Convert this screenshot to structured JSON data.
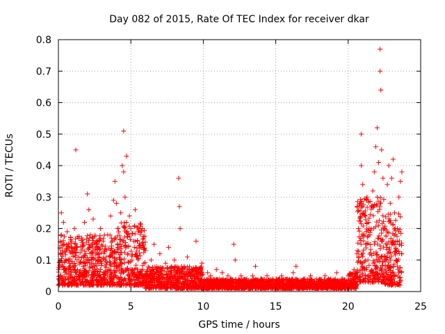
{
  "chart_data": {
    "type": "scatter",
    "title": "Day 082 of 2015, Rate Of TEC Index for receiver dkar",
    "xlabel": "GPS time / hours",
    "ylabel": "ROTI / TECUs",
    "xlim": [
      0,
      25
    ],
    "ylim": [
      0,
      0.8
    ],
    "x_ticks": [
      0,
      5,
      10,
      15,
      20,
      25
    ],
    "y_ticks": [
      0,
      0.1,
      0.2,
      0.3,
      0.4,
      0.5,
      0.6,
      0.7,
      0.8
    ],
    "x_tick_labels": [
      "0",
      "5",
      "10",
      "15",
      "20",
      "25"
    ],
    "y_tick_labels": [
      "0",
      "0.1",
      "0.2",
      "0.3",
      "0.4",
      "0.5",
      "0.6",
      "0.7",
      "0.8"
    ],
    "grid": true,
    "marker": "+",
    "color": "#ff0000",
    "points": [
      [
        0.0,
        0.02
      ],
      [
        0.1,
        0.05
      ],
      [
        0.15,
        0.12
      ],
      [
        0.2,
        0.25
      ],
      [
        0.2,
        0.18
      ],
      [
        0.3,
        0.08
      ],
      [
        0.35,
        0.22
      ],
      [
        0.4,
        0.15
      ],
      [
        0.5,
        0.04
      ],
      [
        0.5,
        0.1
      ],
      [
        0.6,
        0.19
      ],
      [
        0.7,
        0.07
      ],
      [
        0.75,
        0.13
      ],
      [
        0.8,
        0.03
      ],
      [
        0.9,
        0.16
      ],
      [
        1.0,
        0.09
      ],
      [
        1.1,
        0.2
      ],
      [
        1.2,
        0.45
      ],
      [
        1.2,
        0.06
      ],
      [
        1.3,
        0.14
      ],
      [
        1.4,
        0.11
      ],
      [
        1.5,
        0.05
      ],
      [
        1.6,
        0.17
      ],
      [
        1.7,
        0.08
      ],
      [
        1.8,
        0.22
      ],
      [
        1.9,
        0.12
      ],
      [
        2.0,
        0.31
      ],
      [
        2.0,
        0.06
      ],
      [
        2.1,
        0.26
      ],
      [
        2.2,
        0.18
      ],
      [
        2.3,
        0.1
      ],
      [
        2.4,
        0.23
      ],
      [
        2.5,
        0.07
      ],
      [
        2.6,
        0.15
      ],
      [
        2.7,
        0.05
      ],
      [
        2.8,
        0.12
      ],
      [
        2.9,
        0.2
      ],
      [
        3.0,
        0.09
      ],
      [
        3.1,
        0.16
      ],
      [
        3.2,
        0.04
      ],
      [
        3.3,
        0.11
      ],
      [
        3.4,
        0.18
      ],
      [
        3.5,
        0.07
      ],
      [
        3.6,
        0.24
      ],
      [
        3.7,
        0.13
      ],
      [
        3.8,
        0.29
      ],
      [
        3.9,
        0.35
      ],
      [
        4.0,
        0.28
      ],
      [
        4.0,
        0.08
      ],
      [
        4.1,
        0.2
      ],
      [
        4.2,
        0.15
      ],
      [
        4.3,
        0.25
      ],
      [
        4.4,
        0.4
      ],
      [
        4.5,
        0.51
      ],
      [
        4.5,
        0.38
      ],
      [
        4.6,
        0.3
      ],
      [
        4.7,
        0.43
      ],
      [
        4.7,
        0.22
      ],
      [
        4.8,
        0.12
      ],
      [
        4.9,
        0.24
      ],
      [
        5.0,
        0.2
      ],
      [
        5.1,
        0.07
      ],
      [
        5.2,
        0.16
      ],
      [
        5.3,
        0.26
      ],
      [
        5.4,
        0.11
      ],
      [
        5.5,
        0.19
      ],
      [
        5.6,
        0.06
      ],
      [
        5.7,
        0.14
      ],
      [
        5.8,
        0.2
      ],
      [
        5.9,
        0.09
      ],
      [
        6.0,
        0.13
      ],
      [
        6.2,
        0.05
      ],
      [
        6.4,
        0.1
      ],
      [
        6.6,
        0.15
      ],
      [
        6.8,
        0.06
      ],
      [
        7.0,
        0.12
      ],
      [
        7.2,
        0.04
      ],
      [
        7.4,
        0.09
      ],
      [
        7.6,
        0.14
      ],
      [
        7.8,
        0.05
      ],
      [
        8.0,
        0.1
      ],
      [
        8.2,
        0.06
      ],
      [
        8.3,
        0.36
      ],
      [
        8.35,
        0.27
      ],
      [
        8.4,
        0.2
      ],
      [
        8.5,
        0.08
      ],
      [
        8.7,
        0.04
      ],
      [
        8.9,
        0.11
      ],
      [
        9.1,
        0.05
      ],
      [
        9.3,
        0.07
      ],
      [
        9.5,
        0.16
      ],
      [
        9.7,
        0.04
      ],
      [
        9.9,
        0.09
      ],
      [
        10.1,
        0.03
      ],
      [
        10.3,
        0.06
      ],
      [
        10.5,
        0.05
      ],
      [
        10.7,
        0.03
      ],
      [
        10.9,
        0.07
      ],
      [
        11.1,
        0.04
      ],
      [
        11.3,
        0.06
      ],
      [
        11.5,
        0.03
      ],
      [
        11.7,
        0.05
      ],
      [
        11.9,
        0.04
      ],
      [
        12.1,
        0.15
      ],
      [
        12.2,
        0.1
      ],
      [
        12.4,
        0.03
      ],
      [
        12.6,
        0.05
      ],
      [
        12.8,
        0.02
      ],
      [
        13.0,
        0.04
      ],
      [
        13.2,
        0.03
      ],
      [
        13.4,
        0.05
      ],
      [
        13.6,
        0.08
      ],
      [
        13.8,
        0.03
      ],
      [
        14.0,
        0.04
      ],
      [
        14.2,
        0.02
      ],
      [
        14.4,
        0.05
      ],
      [
        14.6,
        0.03
      ],
      [
        14.8,
        0.04
      ],
      [
        15.0,
        0.02
      ],
      [
        15.2,
        0.03
      ],
      [
        15.4,
        0.05
      ],
      [
        15.6,
        0.02
      ],
      [
        15.8,
        0.04
      ],
      [
        16.0,
        0.03
      ],
      [
        16.2,
        0.06
      ],
      [
        16.4,
        0.08
      ],
      [
        16.6,
        0.03
      ],
      [
        16.8,
        0.02
      ],
      [
        17.0,
        0.04
      ],
      [
        17.2,
        0.03
      ],
      [
        17.4,
        0.05
      ],
      [
        17.6,
        0.02
      ],
      [
        17.8,
        0.04
      ],
      [
        18.0,
        0.03
      ],
      [
        18.2,
        0.02
      ],
      [
        18.4,
        0.05
      ],
      [
        18.6,
        0.03
      ],
      [
        18.8,
        0.04
      ],
      [
        19.0,
        0.02
      ],
      [
        19.2,
        0.06
      ],
      [
        19.4,
        0.03
      ],
      [
        19.6,
        0.04
      ],
      [
        19.8,
        0.02
      ],
      [
        20.0,
        0.05
      ],
      [
        20.2,
        0.04
      ],
      [
        20.4,
        0.07
      ],
      [
        20.6,
        0.12
      ],
      [
        20.7,
        0.2
      ],
      [
        20.8,
        0.28
      ],
      [
        20.9,
        0.5
      ],
      [
        20.9,
        0.4
      ],
      [
        21.0,
        0.34
      ],
      [
        21.1,
        0.25
      ],
      [
        21.2,
        0.15
      ],
      [
        21.3,
        0.3
      ],
      [
        21.4,
        0.22
      ],
      [
        21.5,
        0.18
      ],
      [
        21.6,
        0.27
      ],
      [
        21.7,
        0.32
      ],
      [
        21.8,
        0.38
      ],
      [
        21.9,
        0.46
      ],
      [
        22.0,
        0.52
      ],
      [
        22.0,
        0.3
      ],
      [
        22.1,
        0.41
      ],
      [
        22.2,
        0.77
      ],
      [
        22.2,
        0.7
      ],
      [
        22.25,
        0.64
      ],
      [
        22.3,
        0.45
      ],
      [
        22.4,
        0.36
      ],
      [
        22.5,
        0.2
      ],
      [
        22.6,
        0.11
      ],
      [
        22.7,
        0.34
      ],
      [
        22.8,
        0.4
      ],
      [
        22.9,
        0.28
      ],
      [
        23.0,
        0.15
      ],
      [
        23.0,
        0.36
      ],
      [
        23.1,
        0.42
      ],
      [
        23.2,
        0.25
      ],
      [
        23.3,
        0.1
      ],
      [
        23.4,
        0.2
      ],
      [
        23.5,
        0.06
      ],
      [
        23.5,
        0.3
      ],
      [
        23.6,
        0.35
      ],
      [
        23.7,
        0.38
      ],
      [
        23.7,
        0.12
      ]
    ],
    "dense_bands": [
      {
        "x0": 0.0,
        "x1": 4.0,
        "ymin": 0.02,
        "ymax": 0.18
      },
      {
        "x0": 4.0,
        "x1": 6.0,
        "ymin": 0.02,
        "ymax": 0.22
      },
      {
        "x0": 6.0,
        "x1": 10.0,
        "ymin": 0.01,
        "ymax": 0.08
      },
      {
        "x0": 10.0,
        "x1": 20.0,
        "ymin": 0.01,
        "ymax": 0.04
      },
      {
        "x0": 20.0,
        "x1": 20.6,
        "ymin": 0.01,
        "ymax": 0.06
      },
      {
        "x0": 20.6,
        "x1": 22.5,
        "ymin": 0.03,
        "ymax": 0.3
      },
      {
        "x0": 22.5,
        "x1": 23.7,
        "ymin": 0.02,
        "ymax": 0.25
      }
    ]
  }
}
